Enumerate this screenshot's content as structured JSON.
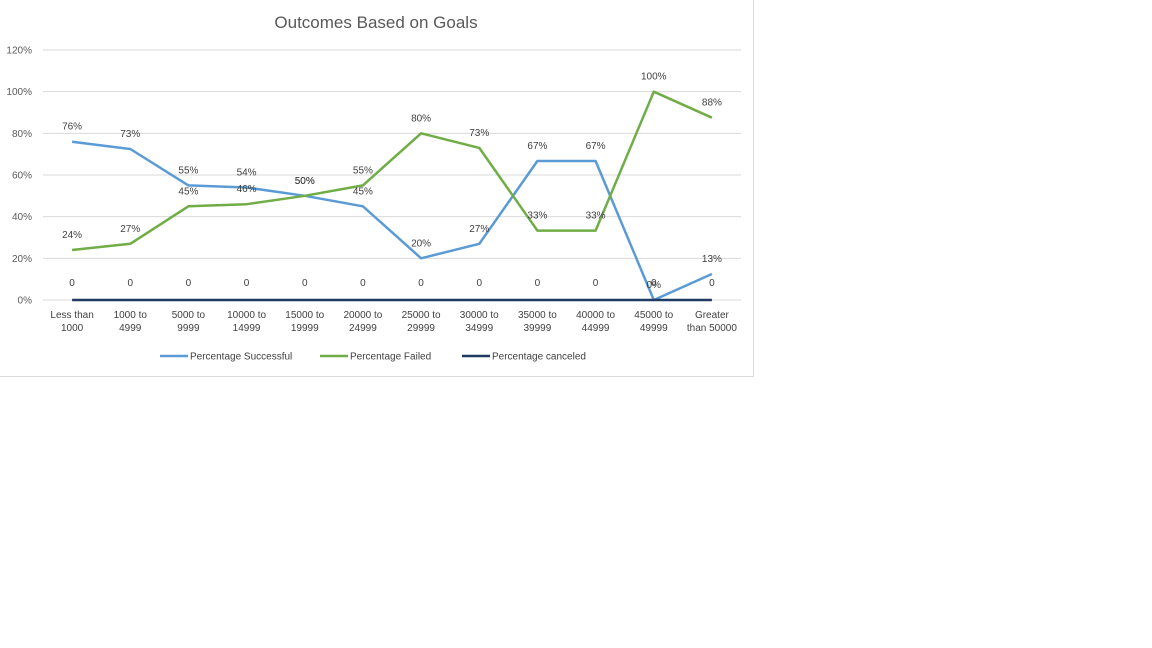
{
  "chart_data": {
    "type": "line",
    "title": "Outcomes Based on Goals",
    "xlabel": "",
    "ylabel": "",
    "categories": [
      [
        "Less than",
        "1000"
      ],
      [
        "1000 to",
        "4999"
      ],
      [
        "5000 to",
        "9999"
      ],
      [
        "10000 to",
        "14999"
      ],
      [
        "15000 to",
        "19999"
      ],
      [
        "20000 to",
        "24999"
      ],
      [
        "25000 to",
        "29999"
      ],
      [
        "30000 to",
        "34999"
      ],
      [
        "35000 to",
        "39999"
      ],
      [
        "40000 to",
        "44999"
      ],
      [
        "45000 to",
        "49999"
      ],
      [
        "Greater",
        "than 50000"
      ]
    ],
    "ylim": [
      0,
      120
    ],
    "yticks": [
      "0%",
      "20%",
      "40%",
      "60%",
      "80%",
      "100%",
      "120%"
    ],
    "grid": true,
    "legend_position": "bottom",
    "series": [
      {
        "name": "Percentage Successful",
        "color": "#5b9bd5",
        "values": [
          76,
          72.5,
          55,
          54,
          50,
          45,
          20,
          27,
          66.7,
          66.7,
          0,
          12.5
        ],
        "labels": [
          "76%",
          "73%",
          "55%",
          "54%",
          "50%",
          "45%",
          "20%",
          "27%",
          "67%",
          "67%",
          "0%",
          "13%"
        ]
      },
      {
        "name": "Percentage Failed",
        "color": "#70ad47",
        "values": [
          24,
          27,
          45,
          46,
          50,
          55,
          80,
          73,
          33.3,
          33.3,
          100,
          87.5
        ],
        "labels": [
          "24%",
          "27%",
          "45%",
          "46%",
          "50%",
          "55%",
          "80%",
          "73%",
          "33%",
          "33%",
          "100%",
          "88%"
        ]
      },
      {
        "name": "Percentage canceled",
        "color": "#1f3b63",
        "values": [
          0,
          0,
          0,
          0,
          0,
          0,
          0,
          0,
          0,
          0,
          0,
          0
        ],
        "labels": [
          "0",
          "0",
          "0",
          "0",
          "0",
          "0",
          "0",
          "0",
          "0",
          "0",
          "0",
          "0"
        ]
      }
    ]
  }
}
